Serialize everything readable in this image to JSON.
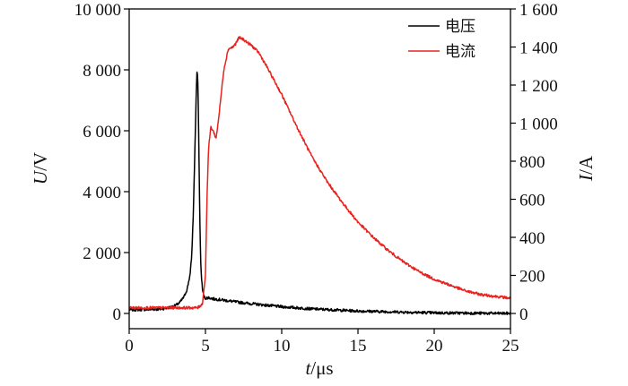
{
  "chart_data": {
    "type": "line",
    "title": "",
    "xlabel": {
      "var": "t",
      "sep": "/",
      "unit": "μs"
    },
    "ylabel_left": {
      "var": "U",
      "sep": "/",
      "unit": "V"
    },
    "ylabel_right": {
      "var": "I",
      "sep": "/",
      "unit": "A"
    },
    "x_range": [
      0,
      25
    ],
    "x_ticks": [
      0,
      5,
      10,
      15,
      20,
      25
    ],
    "x_tick_labels": [
      "0",
      "5",
      "10",
      "15",
      "20",
      "25"
    ],
    "y_left_range": [
      -500,
      10000
    ],
    "y_left_ticks": [
      0,
      2000,
      4000,
      6000,
      8000,
      10000
    ],
    "y_left_tick_labels": [
      "0",
      "2 000",
      "4 000",
      "6 000",
      "8 000",
      "10 000"
    ],
    "y_right_range": [
      -80,
      1600
    ],
    "y_right_ticks": [
      0,
      200,
      400,
      600,
      800,
      1000,
      1200,
      1400,
      1600
    ],
    "y_right_tick_labels": [
      "0",
      "200",
      "400",
      "600",
      "800",
      "1 000",
      "1 200",
      "1 400",
      "1 600"
    ],
    "grid": false,
    "legend_position": "top-right",
    "series": [
      {
        "name": "电压",
        "axis": "left",
        "color": "#000000",
        "x": [
          0,
          1,
          2,
          2.5,
          3,
          3.3,
          3.6,
          3.8,
          4.0,
          4.1,
          4.2,
          4.3,
          4.4,
          4.45,
          4.5,
          4.55,
          4.6,
          4.65,
          4.7,
          4.8,
          4.9,
          5.0,
          5.2,
          5.5,
          6,
          7,
          8,
          10,
          12,
          15,
          20,
          25
        ],
        "values": [
          120,
          130,
          140,
          180,
          250,
          350,
          550,
          800,
          1300,
          1900,
          3200,
          5200,
          7300,
          8000,
          7600,
          6200,
          4200,
          2600,
          1500,
          800,
          550,
          500,
          520,
          480,
          450,
          380,
          320,
          220,
          150,
          80,
          20,
          0
        ]
      },
      {
        "name": "电流",
        "axis": "right",
        "color": "#e8231f",
        "x": [
          0,
          2,
          4,
          4.5,
          4.8,
          5.0,
          5.1,
          5.2,
          5.35,
          5.5,
          5.7,
          5.9,
          6.2,
          6.5,
          6.8,
          7.0,
          7.2,
          7.5,
          7.8,
          8.0,
          8.5,
          9,
          10,
          11,
          12,
          13,
          14,
          15,
          16,
          17,
          18,
          19,
          20,
          21,
          22,
          23,
          24,
          25
        ],
        "values": [
          30,
          30,
          30,
          30,
          50,
          200,
          600,
          860,
          980,
          960,
          920,
          1050,
          1280,
          1390,
          1400,
          1420,
          1450,
          1440,
          1420,
          1410,
          1370,
          1300,
          1150,
          980,
          820,
          690,
          580,
          480,
          400,
          330,
          270,
          220,
          180,
          150,
          120,
          100,
          90,
          80
        ]
      }
    ]
  }
}
